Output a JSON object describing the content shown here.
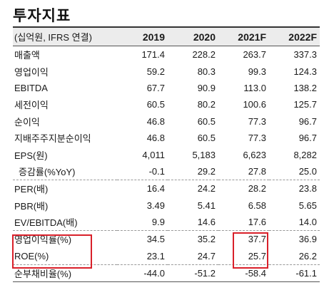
{
  "title": "투자지표",
  "header": {
    "label": "(십억원, IFRS 연결)",
    "years": [
      "2019",
      "2020",
      "2021F",
      "2022F"
    ]
  },
  "rows": [
    {
      "label": "매출액",
      "values": [
        "171.4",
        "228.2",
        "263.7",
        "337.3"
      ]
    },
    {
      "label": "영업이익",
      "values": [
        "59.2",
        "80.3",
        "99.3",
        "124.3"
      ]
    },
    {
      "label": "EBITDA",
      "values": [
        "67.7",
        "90.9",
        "113.0",
        "138.2"
      ]
    },
    {
      "label": "세전이익",
      "values": [
        "60.5",
        "80.2",
        "100.6",
        "125.7"
      ]
    },
    {
      "label": "순이익",
      "values": [
        "46.8",
        "60.5",
        "77.3",
        "96.7"
      ]
    },
    {
      "label": "지배주주지분순이익",
      "values": [
        "46.8",
        "60.5",
        "77.3",
        "96.7"
      ]
    },
    {
      "label": "EPS(원)",
      "values": [
        "4,011",
        "5,183",
        "6,623",
        "8,282"
      ]
    },
    {
      "label": "증감률(%YoY)",
      "values": [
        "-0.1",
        "29.2",
        "27.8",
        "25.0"
      ]
    },
    {
      "label": "PER(배)",
      "values": [
        "16.4",
        "24.2",
        "28.2",
        "23.8"
      ]
    },
    {
      "label": "PBR(배)",
      "values": [
        "3.49",
        "5.41",
        "6.58",
        "5.65"
      ]
    },
    {
      "label": "EV/EBITDA(배)",
      "values": [
        "9.9",
        "14.6",
        "17.6",
        "14.0"
      ]
    },
    {
      "label": "영업이익률(%)",
      "values": [
        "34.5",
        "35.2",
        "37.7",
        "36.9"
      ]
    },
    {
      "label": "ROE(%)",
      "values": [
        "23.1",
        "24.7",
        "25.7",
        "26.2"
      ]
    },
    {
      "label": "순부채비율(%)",
      "values": [
        "-44.0",
        "-51.2",
        "-58.4",
        "-61.1"
      ]
    }
  ],
  "colors": {
    "highlight": "#d9202a",
    "header_bg": "#ececec"
  }
}
